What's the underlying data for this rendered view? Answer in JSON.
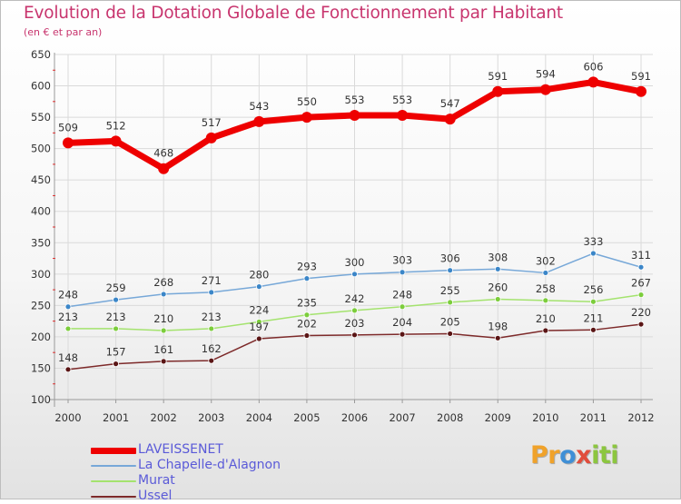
{
  "header": {
    "title": "Evolution de la Dotation Globale de Fonctionnement par Habitant",
    "subtitle": "(en € et par an)"
  },
  "logo": {
    "p1": "Pr",
    "p2": "o",
    "p3": "x",
    "p4": "iti"
  },
  "chart_data": {
    "type": "line",
    "title": "Evolution de la Dotation Globale de Fonctionnement par Habitant",
    "subtitle": "(en € et par an)",
    "xlabel": "",
    "ylabel": "",
    "ylim": [
      100,
      650
    ],
    "yticks": [
      100,
      150,
      200,
      250,
      300,
      350,
      400,
      450,
      500,
      550,
      600,
      650
    ],
    "categories": [
      "2000",
      "2001",
      "2002",
      "2003",
      "2004",
      "2005",
      "2006",
      "2007",
      "2008",
      "2009",
      "2010",
      "2011",
      "2012"
    ],
    "grid": true,
    "legend_position": "bottom-left",
    "series": [
      {
        "name": "LAVEISSENET",
        "color": "#ee0000",
        "markerColor": "#ee0000",
        "values": [
          509,
          512,
          468,
          517,
          543,
          550,
          553,
          553,
          547,
          591,
          594,
          606,
          591
        ]
      },
      {
        "name": "La Chapelle-d'Alagnon",
        "color": "#77a8d8",
        "markerColor": "#3b86c8",
        "values": [
          248,
          259,
          268,
          271,
          280,
          293,
          300,
          303,
          306,
          308,
          302,
          333,
          311
        ]
      },
      {
        "name": "Murat",
        "color": "#a4e36e",
        "markerColor": "#7ccd3c",
        "values": [
          213,
          213,
          210,
          213,
          224,
          235,
          242,
          248,
          255,
          260,
          258,
          256,
          267
        ]
      },
      {
        "name": "Ussel",
        "color": "#7d2a2a",
        "markerColor": "#5a1515",
        "values": [
          148,
          157,
          161,
          162,
          197,
          202,
          203,
          204,
          205,
          198,
          210,
          211,
          220
        ]
      }
    ]
  }
}
